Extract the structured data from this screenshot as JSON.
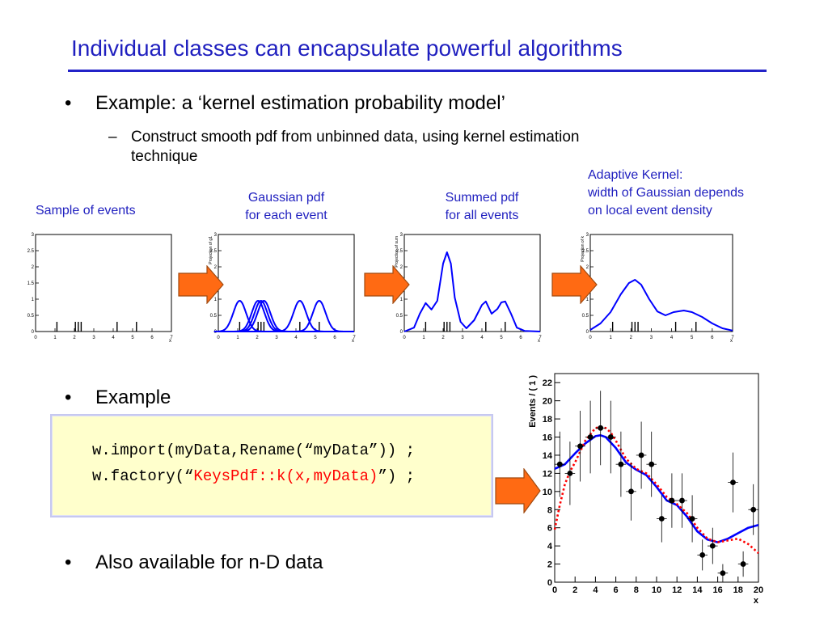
{
  "slide": {
    "title": "Individual classes can encapsulate powerful algorithms",
    "bullets": [
      "Example: a ‘kernel estimation probability model’",
      "Example",
      "Also available for n-D data"
    ],
    "bullet_symbol": "•",
    "sub_bullet": {
      "dash": "–",
      "line1": "Construct smooth pdf from unbinned data, using kernel estimation",
      "line2": "technique"
    },
    "captions": {
      "sample": "Sample of events",
      "gaussian": [
        "Gaussian pdf",
        "for each event"
      ],
      "summed": [
        "Summed pdf",
        "for all events"
      ],
      "adaptive": [
        "Adaptive Kernel:",
        "width of Gaussian depends",
        "on local event density"
      ]
    },
    "code": {
      "line1": "w.import(myData,Rename(“myData”)) ;",
      "line2_pre": "w.factory(“",
      "line2_highlight": "KeysPdf::k(x,myData)",
      "line2_post": "”) ;"
    },
    "colors": {
      "title": "#1f1fbf",
      "arrow": "#ff6a13",
      "curve": "#0000ff",
      "dashed_curve": "#ff0000",
      "code_bg": "#ffffcc"
    }
  },
  "chart_data": [
    {
      "type": "line",
      "panel": "sample",
      "ylabel": "",
      "xlim": [
        0,
        7
      ],
      "ylim": [
        0,
        3
      ],
      "xticks": [
        "0",
        "1",
        "2",
        "3",
        "4",
        "5",
        "6",
        "7"
      ],
      "yticks": [
        "0",
        "0.5",
        "1",
        "1.5",
        "2",
        "2.5",
        "3"
      ],
      "xlabel": "x",
      "events": [
        1.1,
        2.05,
        2.2,
        2.35,
        4.2,
        5.2
      ]
    },
    {
      "type": "line",
      "panel": "gaussian",
      "ylabel": "Projection of g1",
      "xlim": [
        0,
        7
      ],
      "ylim": [
        0,
        3
      ],
      "xticks": [
        "0",
        "1",
        "2",
        "3",
        "4",
        "5",
        "6",
        "7"
      ],
      "yticks": [
        "0",
        "0.5",
        "1",
        "1.5",
        "2",
        "2.5",
        "3"
      ],
      "xlabel": "x",
      "events": [
        1.1,
        2.05,
        2.2,
        2.35,
        4.2,
        5.2
      ],
      "kernel_height": 0.95,
      "kernel_sigma": 0.33
    },
    {
      "type": "line",
      "panel": "summed",
      "ylabel": "Projection of sum",
      "xlim": [
        0,
        7
      ],
      "ylim": [
        0,
        3
      ],
      "xticks": [
        "0",
        "1",
        "2",
        "3",
        "4",
        "5",
        "6",
        "7"
      ],
      "yticks": [
        "0",
        "0.5",
        "1",
        "1.5",
        "2",
        "2.5",
        "3"
      ],
      "xlabel": "x",
      "events": [
        1.1,
        2.05,
        2.2,
        2.35,
        4.2,
        5.2
      ],
      "curve_x": [
        0,
        0.5,
        0.8,
        1.1,
        1.4,
        1.7,
        2.0,
        2.2,
        2.4,
        2.6,
        2.9,
        3.2,
        3.6,
        4.0,
        4.2,
        4.5,
        4.8,
        5.0,
        5.2,
        5.5,
        5.8,
        6.2,
        7
      ],
      "curve_y": [
        0,
        0.12,
        0.55,
        0.88,
        0.68,
        0.95,
        2.1,
        2.45,
        2.1,
        1.05,
        0.3,
        0.1,
        0.35,
        0.82,
        0.93,
        0.55,
        0.7,
        0.9,
        0.93,
        0.55,
        0.12,
        0.02,
        0
      ]
    },
    {
      "type": "line",
      "panel": "adaptive",
      "ylabel": "Projection of k",
      "xlim": [
        0,
        7
      ],
      "ylim": [
        0,
        3
      ],
      "xticks": [
        "0",
        "1",
        "2",
        "3",
        "4",
        "5",
        "6",
        "7"
      ],
      "yticks": [
        "0",
        "0.5",
        "1",
        "1.5",
        "2",
        "2.5",
        "3"
      ],
      "xlabel": "x",
      "events": [
        1.1,
        2.05,
        2.2,
        2.35,
        4.2,
        5.2
      ],
      "curve_x": [
        0,
        0.5,
        1.0,
        1.5,
        1.9,
        2.2,
        2.5,
        2.9,
        3.3,
        3.7,
        4.1,
        4.6,
        5.0,
        5.5,
        6.0,
        6.5,
        7
      ],
      "curve_y": [
        0.05,
        0.25,
        0.6,
        1.15,
        1.5,
        1.6,
        1.45,
        1.0,
        0.62,
        0.5,
        0.6,
        0.65,
        0.6,
        0.45,
        0.25,
        0.1,
        0.03
      ]
    },
    {
      "type": "scatter",
      "panel": "fit",
      "ylabel": "Events / ( 1 )",
      "xlabel": "x",
      "xlim": [
        0,
        20
      ],
      "ylim": [
        0,
        23
      ],
      "xticks": [
        "0",
        "2",
        "4",
        "6",
        "8",
        "10",
        "12",
        "14",
        "16",
        "18",
        "20"
      ],
      "yticks": [
        "0",
        "2",
        "4",
        "6",
        "8",
        "10",
        "12",
        "14",
        "16",
        "18",
        "20",
        "22"
      ],
      "points": [
        {
          "x": 0.5,
          "y": 13,
          "err": 3.6
        },
        {
          "x": 1.5,
          "y": 12,
          "err": 3.5
        },
        {
          "x": 2.5,
          "y": 15,
          "err": 3.9
        },
        {
          "x": 3.5,
          "y": 16,
          "err": 4.0
        },
        {
          "x": 4.5,
          "y": 17,
          "err": 4.1
        },
        {
          "x": 5.5,
          "y": 16,
          "err": 4.0
        },
        {
          "x": 6.5,
          "y": 13,
          "err": 3.6
        },
        {
          "x": 7.5,
          "y": 10,
          "err": 3.2
        },
        {
          "x": 8.5,
          "y": 14,
          "err": 3.7
        },
        {
          "x": 9.5,
          "y": 13,
          "err": 3.6
        },
        {
          "x": 10.5,
          "y": 7,
          "err": 2.6
        },
        {
          "x": 11.5,
          "y": 9,
          "err": 3.0
        },
        {
          "x": 12.5,
          "y": 9,
          "err": 3.0
        },
        {
          "x": 13.5,
          "y": 7,
          "err": 2.6
        },
        {
          "x": 14.5,
          "y": 3,
          "err": 1.7
        },
        {
          "x": 15.5,
          "y": 4,
          "err": 2.0
        },
        {
          "x": 16.5,
          "y": 1,
          "err": 1.0
        },
        {
          "x": 17.5,
          "y": 11,
          "err": 3.3
        },
        {
          "x": 18.5,
          "y": 2,
          "err": 1.4
        },
        {
          "x": 19.5,
          "y": 8,
          "err": 2.8
        }
      ],
      "series": [
        {
          "style": "solid",
          "x": [
            0,
            1,
            2,
            3,
            4,
            4.5,
            5,
            6,
            7,
            8,
            9,
            10,
            11,
            12,
            13,
            14,
            15,
            16,
            17,
            18,
            19,
            20
          ],
          "y": [
            12.5,
            13,
            14.2,
            15.3,
            16.1,
            16.2,
            16,
            14.8,
            13.2,
            12.4,
            11.8,
            10.5,
            9.0,
            8.5,
            7.2,
            5.6,
            4.7,
            4.4,
            4.8,
            5.4,
            6.0,
            6.3
          ]
        },
        {
          "style": "dashed",
          "x": [
            0,
            0.5,
            1,
            1.5,
            2,
            3,
            4,
            4.5,
            5,
            5.5,
            6,
            7,
            8,
            9,
            10,
            11,
            12,
            13,
            14,
            15,
            16,
            17,
            18,
            19,
            20
          ],
          "y": [
            5.8,
            8.5,
            10.8,
            12.2,
            13.2,
            15.6,
            17.0,
            17.1,
            17.0,
            16.5,
            15.6,
            13.6,
            12.5,
            12.0,
            10.8,
            9.4,
            8.6,
            7.6,
            6.0,
            4.8,
            4.4,
            4.6,
            4.8,
            4.2,
            3.2
          ]
        }
      ]
    }
  ]
}
